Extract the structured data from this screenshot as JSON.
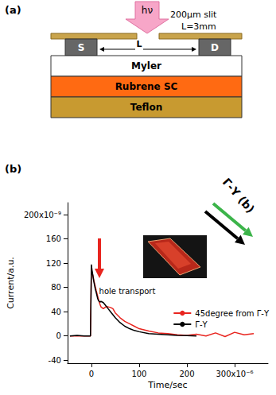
{
  "panels": [
    "(a)",
    "(b)"
  ],
  "diagram": {
    "light": "hν",
    "slit": "200μm slit",
    "length": "L=3mm",
    "source": "S",
    "drain": "D",
    "gap": "L",
    "layers": [
      "Myler",
      "Rubrene SC",
      "Teflon"
    ]
  },
  "chart_data": {
    "type": "line",
    "x_label": "Time/sec",
    "y_label": "Current/a.u.",
    "x": [
      -4.5e-05,
      -3e-05,
      -1.5e-05,
      -2e-06,
      0,
      1e-06,
      3e-06,
      5e-06,
      8e-06,
      1e-05,
      1.3e-05,
      1.5e-05,
      1.8e-05,
      2e-05,
      2.5e-05,
      3e-05,
      3.5e-05,
      4e-05,
      4.5e-05,
      5e-05,
      6e-05,
      7e-05,
      8e-05,
      9e-05,
      0.0001,
      0.00012,
      0.00014,
      0.00016,
      0.00018,
      0.0002,
      0.00022,
      0.00024,
      0.00026,
      0.00028,
      0.0003,
      0.00032,
      0.00034
    ],
    "series": [
      {
        "name": "45degree from Γ-Y",
        "color": "#e8251f",
        "values": [
          0,
          0,
          0,
          0,
          1.12e-07,
          1.05e-07,
          1e-07,
          9.2e-08,
          8.2e-08,
          7.5e-08,
          6.6e-08,
          6e-08,
          5.2e-08,
          4.8e-08,
          4.5e-08,
          4.8e-08,
          4.8e-08,
          4.7e-08,
          4.5e-08,
          3.8e-08,
          3e-08,
          2.4e-08,
          2e-08,
          1.6e-08,
          1.2e-08,
          8e-09,
          5e-09,
          4e-09,
          2e-09,
          1e-09,
          3e-09,
          0,
          5e-09,
          -1e-09,
          6e-09,
          2e-09,
          4e-09
        ]
      },
      {
        "name": "Γ-Y",
        "color": "#000000",
        "values": [
          0,
          1e-09,
          0,
          0,
          1.18e-07,
          1.1e-07,
          1e-07,
          9e-08,
          7.8e-08,
          7.2e-08,
          6.2e-08,
          5.8e-08,
          5.6e-08,
          5.7e-08,
          5.5e-08,
          5e-08,
          4.5e-08,
          4e-08,
          3.5e-08,
          3e-08,
          2.2e-08,
          1.6e-08,
          1.2e-08,
          9e-09,
          7e-09,
          4e-09,
          3e-09,
          2e-09,
          1e-09,
          5e-10,
          0,
          null,
          null,
          null,
          null,
          null,
          null
        ]
      }
    ],
    "xlim": [
      -5e-05,
      0.00037
    ],
    "xticks": [
      0,
      {
        "value": 0.0001,
        "label": "100"
      },
      {
        "value": 0.0002,
        "label": "200"
      },
      {
        "value": 0.0003,
        "label": "300x10⁻⁶"
      }
    ],
    "ylim": [
      -4.5e-08,
      2.2e-07
    ],
    "yticks": [
      {
        "value": -4e-08,
        "label": "-40"
      },
      0,
      {
        "value": 4e-08,
        "label": "40"
      },
      {
        "value": 8e-08,
        "label": "80"
      },
      {
        "value": 1.2e-07,
        "label": "120"
      },
      {
        "value": 1.6e-07,
        "label": "160"
      },
      {
        "value": 2e-07,
        "label": "200x10⁻⁹"
      }
    ],
    "grid": false,
    "legend": "right",
    "annotations": [
      "hole transport",
      "Γ-Y (b)"
    ]
  }
}
